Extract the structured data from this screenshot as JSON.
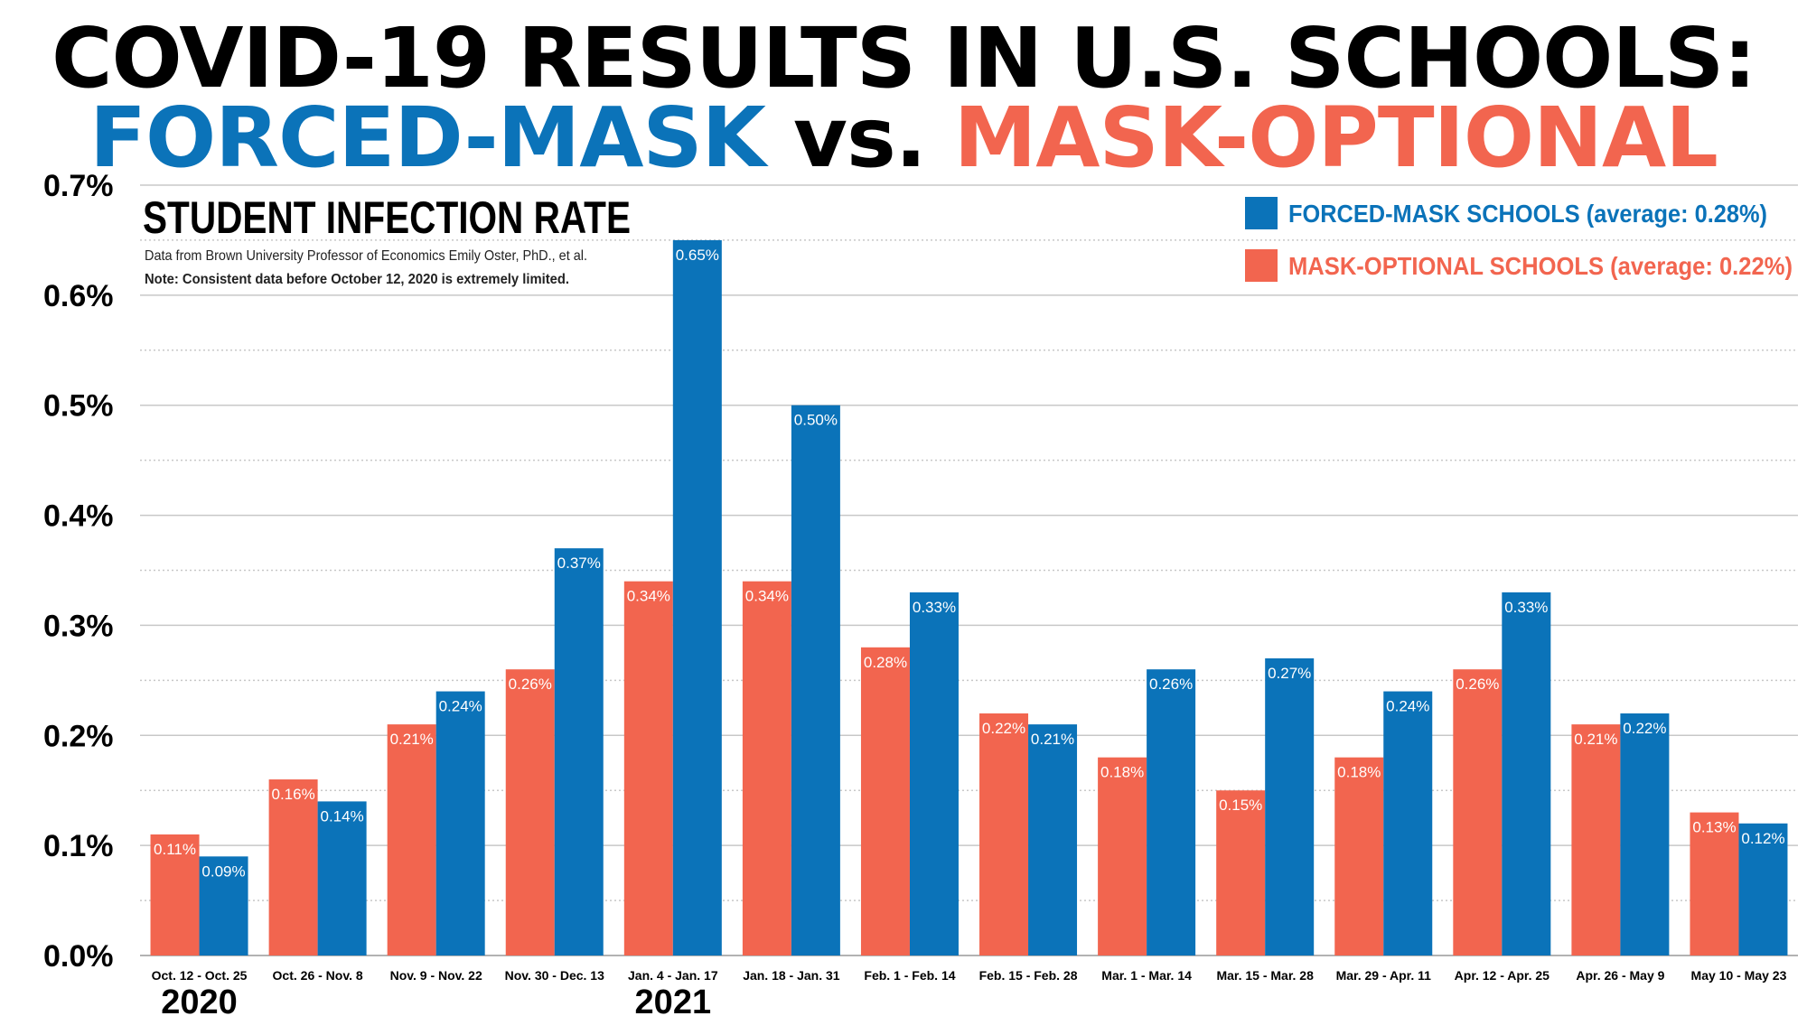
{
  "header": {
    "title_line1": "COVID-19 RESULTS IN U.S. SCHOOLS:",
    "title_part_blue": "FORCED-MASK",
    "title_part_vs": " vs. ",
    "title_part_red": "MASK-OPTIONAL"
  },
  "colors": {
    "forced_mask": "#0b73b9",
    "mask_optional": "#f2654f",
    "grid": "#c8c8c8",
    "text": "#000000"
  },
  "chart_data": {
    "type": "bar",
    "title": "STUDENT INFECTION RATE",
    "notes": [
      "Data from Brown University Professor of Economics Emily Oster, PhD., et al.",
      "Note: Consistent data before October 12, 2020 is extremely limited."
    ],
    "categories": [
      "Oct. 12 - Oct. 25",
      "Oct. 26 - Nov. 8",
      "Nov. 9 - Nov. 22",
      "Nov. 30 - Dec. 13",
      "Jan. 4 - Jan. 17",
      "Jan. 18 - Jan. 31",
      "Feb. 1 - Feb. 14",
      "Feb. 15 - Feb. 28",
      "Mar. 1 - Mar. 14",
      "Mar. 15 - Mar. 28",
      "Mar. 29 - Apr. 11",
      "Apr. 12 - Apr. 25",
      "Apr. 26 - May 9",
      "May 10 - May 23"
    ],
    "series": [
      {
        "name": "MASK-OPTIONAL SCHOOLS (average: 0.22%)",
        "key": "mask_optional",
        "values": [
          0.11,
          0.16,
          0.21,
          0.26,
          0.34,
          0.34,
          0.28,
          0.22,
          0.18,
          0.15,
          0.18,
          0.26,
          0.21,
          0.13
        ],
        "labels": [
          "0.11%",
          "0.16%",
          "0.21%",
          "0.26%",
          "0.34%",
          "0.34%",
          "0.28%",
          "0.22%",
          "0.18%",
          "0.15%",
          "0.18%",
          "0.26%",
          "0.21%",
          "0.13%"
        ]
      },
      {
        "name": "FORCED-MASK SCHOOLS (average: 0.28%)",
        "key": "forced_mask",
        "values": [
          0.09,
          0.14,
          0.24,
          0.37,
          0.65,
          0.5,
          0.33,
          0.21,
          0.26,
          0.27,
          0.24,
          0.33,
          0.22,
          0.12
        ],
        "labels": [
          "0.09%",
          "0.14%",
          "0.24%",
          "0.37%",
          "0.65%",
          "0.50%",
          "0.33%",
          "0.21%",
          "0.26%",
          "0.27%",
          "0.24%",
          "0.33%",
          "0.22%",
          "0.12%"
        ]
      }
    ],
    "legend_order": [
      "forced_mask",
      "mask_optional"
    ],
    "legend_placement": "top-right",
    "ylim": [
      0,
      0.7
    ],
    "yticks": [
      0,
      0.1,
      0.2,
      0.3,
      0.4,
      0.5,
      0.6,
      0.7
    ],
    "ytick_labels": [
      "0.0%",
      "0.1%",
      "0.2%",
      "0.3%",
      "0.4%",
      "0.5%",
      "0.6%",
      "0.7%"
    ],
    "year_labels": [
      {
        "text": "2020",
        "category_index": 0
      },
      {
        "text": "2021",
        "category_index": 4
      }
    ],
    "grid": true
  }
}
